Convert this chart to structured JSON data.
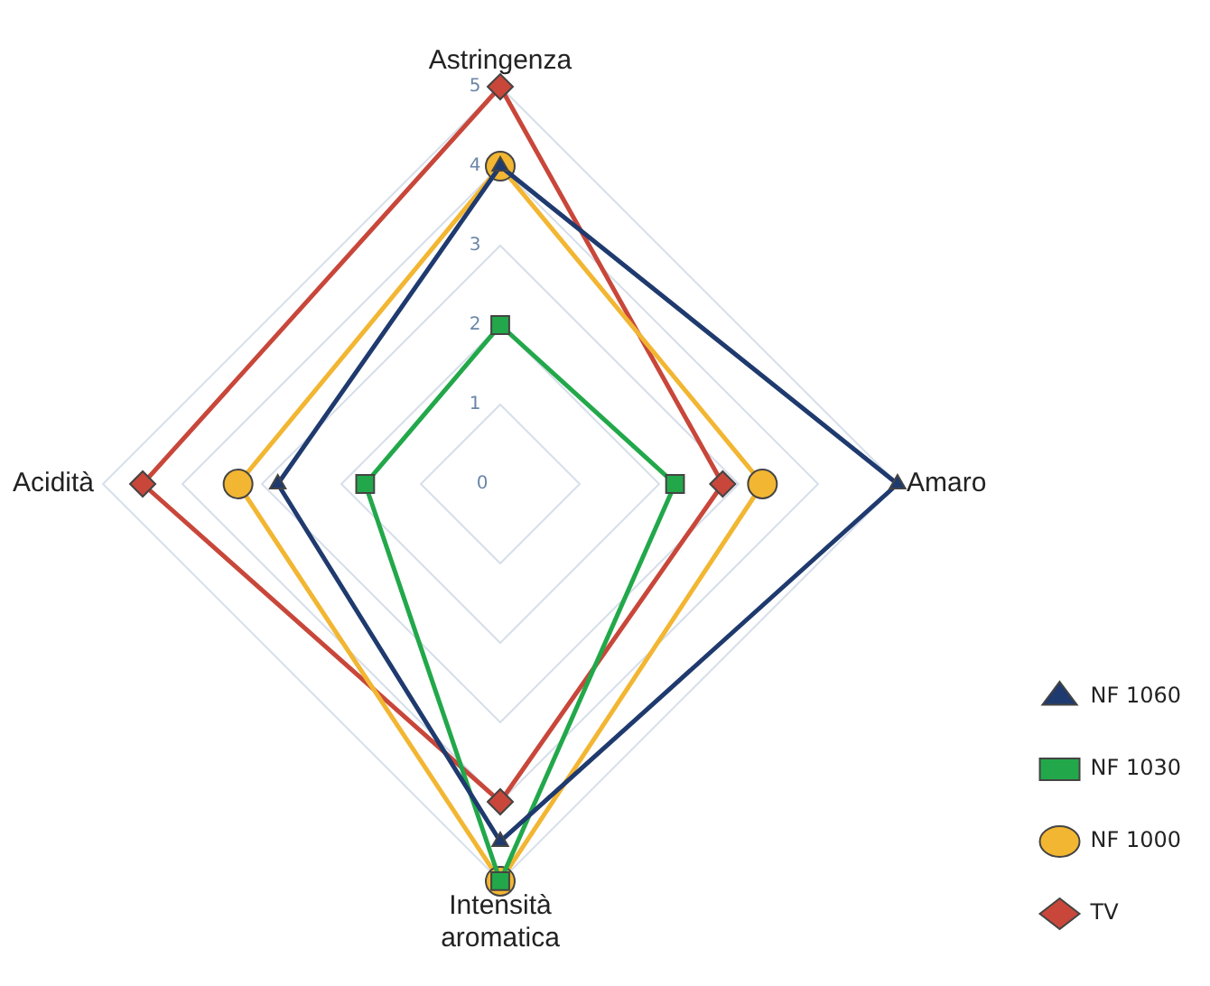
{
  "chart_data": {
    "type": "radar",
    "categories": [
      "Astringenza",
      "Amaro",
      "Intensità aromatica",
      "Acidità"
    ],
    "ylim": [
      0,
      5
    ],
    "yticks": [
      0,
      1,
      2,
      3,
      4,
      5
    ],
    "grid": true,
    "legend": "bottom right",
    "series": [
      {
        "name": "NF 1060",
        "color": "#1f3a6e",
        "marker": "triangle",
        "values": [
          4,
          5,
          4.5,
          2.8
        ]
      },
      {
        "name": "NF 1030",
        "color": "#22a84a",
        "marker": "square",
        "values": [
          2,
          2.2,
          5,
          1.7
        ]
      },
      {
        "name": "NF 1000",
        "color": "#f2b632",
        "marker": "circle",
        "values": [
          4,
          3.3,
          5,
          3.3
        ]
      },
      {
        "name": "TV",
        "color": "#c8473a",
        "marker": "diamond",
        "values": [
          5,
          2.8,
          4,
          4.5
        ]
      }
    ]
  }
}
